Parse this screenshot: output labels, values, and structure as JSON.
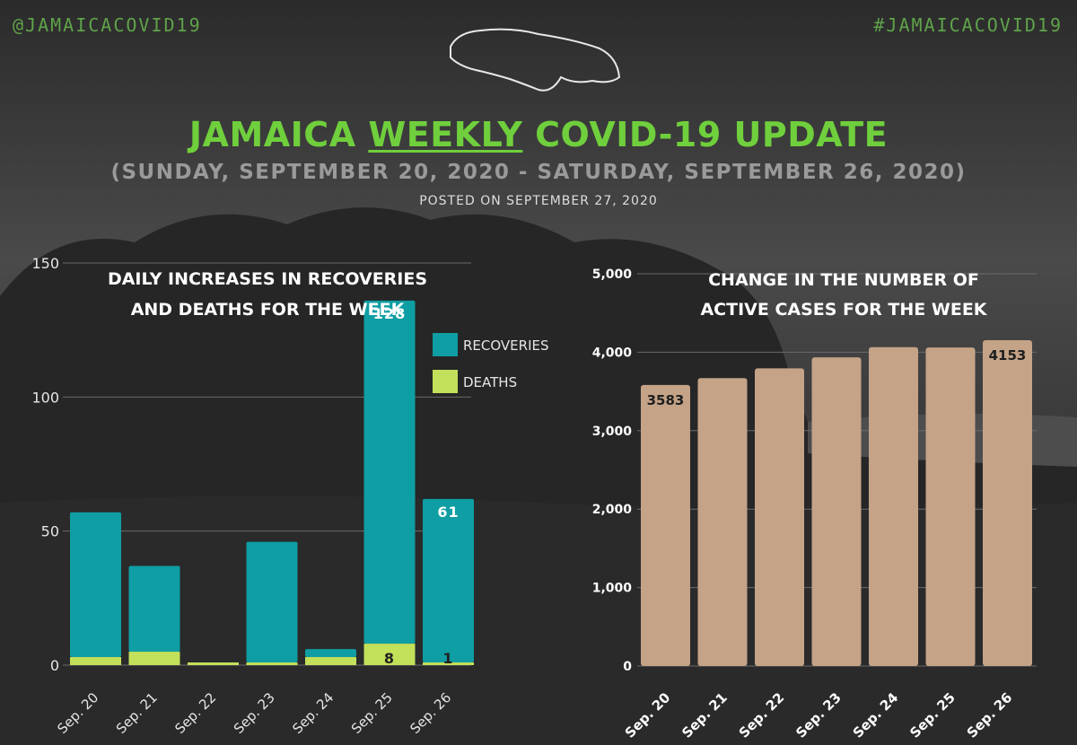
{
  "header": {
    "handle_left": "@JAMAICACOVID19",
    "handle_right": "#JAMAICACOVID19",
    "title_pre": "JAMAICA ",
    "title_underlined": "WEEKLY",
    "title_post": " COVID-19 UPDATE",
    "date_range": "(SUNDAY, SEPTEMBER 20, 2020 - SATURDAY, SEPTEMBER 26, 2020)",
    "posted": "POSTED ON SEPTEMBER 27, 2020"
  },
  "colors": {
    "accent": "#6fcf3c",
    "recoveries": "#0e9ea3",
    "deaths": "#c3e05a",
    "active": "#c4a387"
  },
  "chart_data": [
    {
      "type": "bar",
      "stacked": true,
      "title_lines": [
        "DAILY INCREASES IN RECOVERIES",
        "AND DEATHS FOR THE WEEK"
      ],
      "categories": [
        "Sep. 20",
        "Sep. 21",
        "Sep. 22",
        "Sep. 23",
        "Sep. 24",
        "Sep. 25",
        "Sep. 26"
      ],
      "series": [
        {
          "name": "DEATHS",
          "values": [
            3,
            5,
            1,
            1,
            3,
            8,
            1
          ]
        },
        {
          "name": "RECOVERIES",
          "values": [
            54,
            32,
            0,
            45,
            3,
            128,
            61
          ]
        }
      ],
      "data_labels": [
        {
          "category": "Sep. 25",
          "series": "RECOVERIES",
          "text": "128"
        },
        {
          "category": "Sep. 26",
          "series": "RECOVERIES",
          "text": "61"
        },
        {
          "category": "Sep. 25",
          "series": "DEATHS",
          "text": "8"
        },
        {
          "category": "Sep. 26",
          "series": "DEATHS",
          "text": "1"
        }
      ],
      "ylim": [
        0,
        150
      ],
      "yticks": [
        0,
        50,
        100,
        150
      ],
      "legend": "top-right",
      "grid": true
    },
    {
      "type": "bar",
      "title_lines": [
        "CHANGE IN THE NUMBER OF",
        "ACTIVE CASES FOR THE WEEK"
      ],
      "categories": [
        "Sep. 20",
        "Sep. 21",
        "Sep. 22",
        "Sep. 23",
        "Sep. 24",
        "Sep. 25",
        "Sep. 26"
      ],
      "values": [
        3583,
        3670,
        3795,
        3935,
        4065,
        4060,
        4153
      ],
      "data_labels": [
        {
          "category": "Sep. 20",
          "text": "3583"
        },
        {
          "category": "Sep. 26",
          "text": "4153"
        }
      ],
      "ylim": [
        0,
        5000
      ],
      "yticks": [
        0,
        1000,
        2000,
        3000,
        4000,
        5000
      ],
      "ytick_labels": [
        "0",
        "1,000",
        "2,000",
        "3,000",
        "4,000",
        "5,000"
      ],
      "grid": true
    }
  ]
}
